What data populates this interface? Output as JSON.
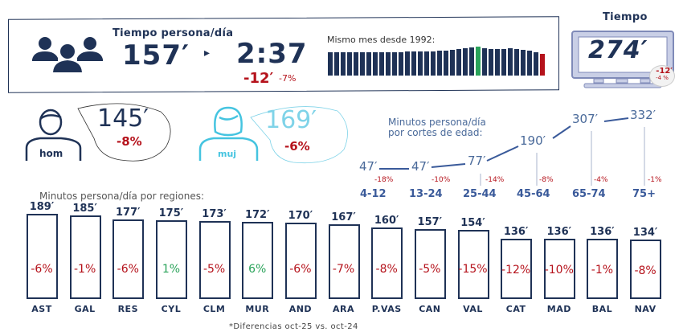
{
  "header": {
    "title": "Tiempo persona/día",
    "minutes": "157′",
    "hours": "2:37",
    "diff_min": "-12′",
    "diff_pct": "-7%",
    "history_label": "Mismo mes desde 1992:"
  },
  "tv": {
    "title": "Tiempo",
    "value": "274′",
    "diff_min": "-12′",
    "diff_pct": "-4 %"
  },
  "gender": {
    "men": {
      "label": "hom",
      "value": "145′",
      "pct": "-8%"
    },
    "women": {
      "label": "muj",
      "value": "169′",
      "pct": "-6%"
    }
  },
  "colors": {
    "navy": "#1f3256",
    "red": "#b5121b",
    "green": "#2aa35a",
    "light_blue": "#7fd3e8"
  },
  "regions_title": "Minutos persona/día por regiones:",
  "footnote": "*Diferencias oct-25 vs. oct-24",
  "age_title": [
    "Minutos persona/día",
    "por cortes de edad:"
  ],
  "chart_data": [
    {
      "type": "bar",
      "title": "Mismo mes desde 1992:",
      "note": "relative heights, first 1992, last (red) current; green = maximum",
      "relative_values": [
        0.8,
        0.8,
        0.8,
        0.8,
        0.8,
        0.8,
        0.8,
        0.8,
        0.8,
        0.8,
        0.8,
        0.81,
        0.82,
        0.82,
        0.83,
        0.84,
        0.84,
        0.86,
        0.87,
        0.9,
        0.93,
        0.95,
        0.97,
        1.0,
        0.95,
        0.92,
        0.92,
        0.92,
        0.95,
        0.92,
        0.9,
        0.85,
        0.8,
        0.74
      ],
      "highlight": {
        "max_index": 23,
        "current_index": 33
      }
    },
    {
      "type": "line",
      "title": "Minutos persona/día por cortes de edad:",
      "categories": [
        "4-12",
        "13-24",
        "25-44",
        "45-64",
        "65-74",
        "75+"
      ],
      "values": [
        47,
        47,
        77,
        190,
        307,
        332
      ],
      "value_labels": [
        "47′",
        "47′",
        "77′",
        "190′",
        "307′",
        "332′"
      ],
      "pct": [
        "-18%",
        "-10%",
        "-14%",
        "-8%",
        "-4%",
        "-1%"
      ]
    },
    {
      "type": "bar",
      "title": "Minutos persona/día por regiones:",
      "categories": [
        "AST",
        "GAL",
        "RES",
        "CYL",
        "CLM",
        "MUR",
        "AND",
        "ARA",
        "P.VAS",
        "CAN",
        "VAL",
        "CAT",
        "MAD",
        "BAL",
        "NAV"
      ],
      "values": [
        189,
        185,
        177,
        175,
        173,
        172,
        170,
        167,
        160,
        157,
        154,
        136,
        136,
        136,
        134
      ],
      "value_labels": [
        "189′",
        "185′",
        "177′",
        "175′",
        "173′",
        "172′",
        "170′",
        "167′",
        "160′",
        "157′",
        "154′",
        "136′",
        "136′",
        "136′",
        "134′"
      ],
      "pct": [
        "-6%",
        "-1%",
        "-6%",
        "1%",
        "-5%",
        "6%",
        "-6%",
        "-7%",
        "-8%",
        "-5%",
        "-15%",
        "-12%",
        "-10%",
        "-1%",
        "-8%"
      ]
    }
  ]
}
